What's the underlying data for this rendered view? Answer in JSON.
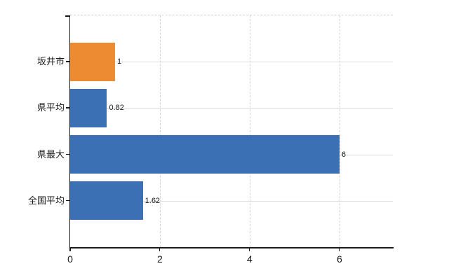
{
  "chart_data": {
    "type": "bar",
    "orientation": "horizontal",
    "title": "",
    "xlabel": "",
    "ylabel": "",
    "categories": [
      "坂井市",
      "県平均",
      "県最大",
      "全国平均"
    ],
    "values": [
      1,
      0.82,
      6,
      1.62
    ],
    "value_labels": [
      "1",
      "0.82",
      "6",
      "1.62"
    ],
    "bar_colors": [
      "#ED8B33",
      "#3C70B5",
      "#3C70B5",
      "#3C70B5"
    ],
    "highlight_index": 0,
    "xlim": [
      0,
      7.19
    ],
    "x_ticks": [
      0,
      2,
      4,
      6
    ],
    "x_tick_labels": [
      "0",
      "2",
      "4",
      "6"
    ],
    "grid": "on",
    "legend": "none"
  },
  "colors": {
    "highlight_bar": "#ED8B33",
    "default_bar": "#3C70B5",
    "gridline_solid": "#D9DDD9",
    "gridline_dashed": "#D2D2D2",
    "axis": "#1A1A1A",
    "text": "#1A1A1A",
    "background": "#FFFFFF"
  }
}
